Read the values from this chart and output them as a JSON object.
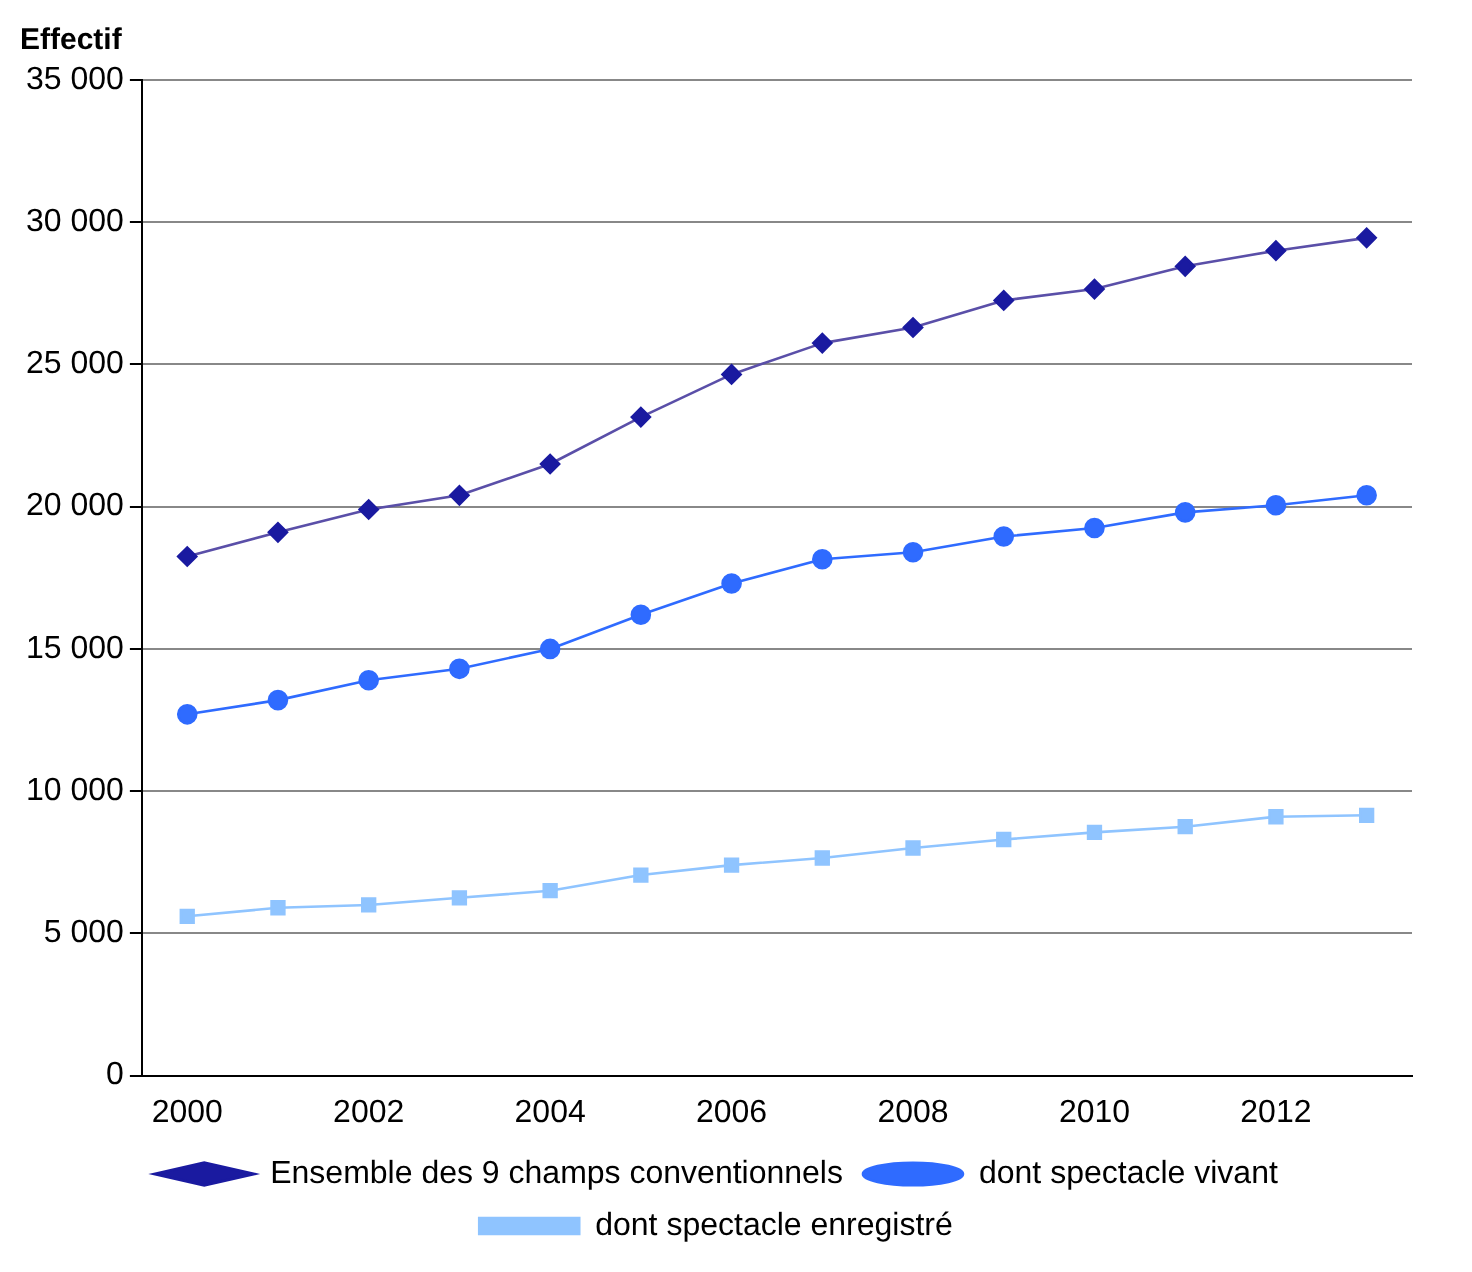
{
  "chart_data": {
    "type": "line",
    "ylabel": "Effectif",
    "categories": [
      "2000",
      null,
      "2002",
      null,
      "2004",
      null,
      "2006",
      null,
      "2008",
      null,
      "2010",
      null,
      "2012",
      null
    ],
    "series": [
      {
        "name": "Ensemble des 9 champs conventionnels",
        "color": "#5a4fa8",
        "marker": "diamond",
        "values": [
          18250,
          19100,
          19900,
          20400,
          21500,
          23150,
          24650,
          25750,
          26300,
          27250,
          27650,
          28450,
          29000,
          29450
        ]
      },
      {
        "name": "dont spectacle vivant",
        "color": "#2f6bff",
        "marker": "circle",
        "values": [
          12700,
          13200,
          13900,
          14300,
          15000,
          16200,
          17300,
          18150,
          18400,
          18950,
          19250,
          19800,
          20050,
          20400
        ]
      },
      {
        "name": "dont spectacle enregistré",
        "color": "#8fc4ff",
        "marker": "square",
        "values": [
          5600,
          5900,
          6000,
          6250,
          6500,
          7050,
          7400,
          7650,
          8000,
          8300,
          8550,
          8750,
          9100,
          9150
        ]
      }
    ],
    "ylim": [
      0,
      35000
    ],
    "yticks": [
      {
        "value": 0,
        "label": "0"
      },
      {
        "value": 5000,
        "label": "5 000"
      },
      {
        "value": 10000,
        "label": "10 000"
      },
      {
        "value": 15000,
        "label": "15 000"
      },
      {
        "value": 20000,
        "label": "20 000"
      },
      {
        "value": 25000,
        "label": "25 000"
      },
      {
        "value": 30000,
        "label": "30 000"
      },
      {
        "value": 35000,
        "label": "35 000"
      }
    ],
    "grid": "y",
    "legend": "bottom"
  }
}
